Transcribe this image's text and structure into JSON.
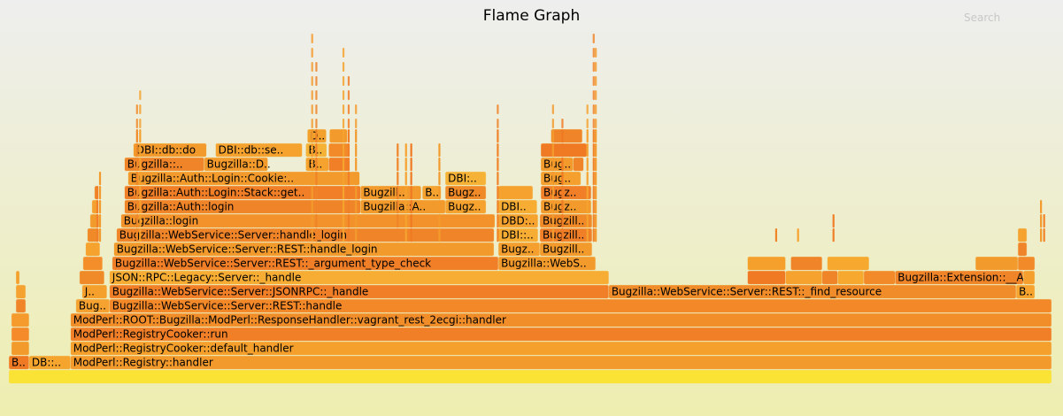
{
  "title": "Flame Graph",
  "search_label": "Search",
  "colors": {
    "background_top": "#eeeeee",
    "background_bottom": "#eeeeb0"
  },
  "chart_data": {
    "type": "flame",
    "title": "Flame Graph",
    "note": "x and w are fractions of total samples; depth 0 is the root frame",
    "frames": [
      {
        "d": 0,
        "x": 0.0,
        "w": 1.0,
        "label": "",
        "c": "#fae334"
      },
      {
        "d": 1,
        "x": 0.0,
        "w": 0.0194,
        "label": "B..",
        "c": "#f07a24"
      },
      {
        "d": 1,
        "x": 0.0194,
        "w": 0.0398,
        "label": "DB::..",
        "c": "#f5a52e"
      },
      {
        "d": 1,
        "x": 0.0592,
        "w": 0.9408,
        "label": "ModPerl::Registry::handler",
        "c": "#f39a2c"
      },
      {
        "d": 2,
        "x": 0.0025,
        "w": 0.0169,
        "label": "",
        "c": "#f29a2b"
      },
      {
        "d": 2,
        "x": 0.0592,
        "w": 0.9408,
        "label": "ModPerl::RegistryCooker::default_handler",
        "c": "#f5a02c"
      },
      {
        "d": 3,
        "x": 0.0025,
        "w": 0.0169,
        "label": "",
        "c": "#f48a2a"
      },
      {
        "d": 3,
        "x": 0.0592,
        "w": 0.9408,
        "label": "ModPerl::RegistryCooker::run",
        "c": "#f07f28"
      },
      {
        "d": 4,
        "x": 0.0025,
        "w": 0.0169,
        "label": "",
        "c": "#f59a2c"
      },
      {
        "d": 4,
        "x": 0.0592,
        "w": 0.9408,
        "label": "ModPerl::ROOT::Bugzilla::ModPerl::ResponseHandler::vagrant_rest_2ecgi::handler",
        "c": "#f28e2a"
      },
      {
        "d": 5,
        "x": 0.0068,
        "w": 0.0093,
        "label": "",
        "c": "#f08428"
      },
      {
        "d": 5,
        "x": 0.0644,
        "w": 0.0322,
        "label": "Bug..",
        "c": "#f6a230"
      },
      {
        "d": 5,
        "x": 0.0966,
        "w": 0.9034,
        "label": "Bugzilla::WebService::Server::REST::handle",
        "c": "#f38829"
      },
      {
        "d": 6,
        "x": 0.0068,
        "w": 0.0093,
        "label": "",
        "c": "#f5a230"
      },
      {
        "d": 6,
        "x": 0.0703,
        "w": 0.0237,
        "label": "J..",
        "c": "#f5a02c"
      },
      {
        "d": 6,
        "x": 0.0966,
        "w": 0.4788,
        "label": "Bugzilla::WebService::Server::JSONRPC::_handle",
        "c": "#f07f28"
      },
      {
        "d": 6,
        "x": 0.5754,
        "w": 0.3907,
        "label": "Bugzilla::WebService::Server::REST::_find_resource",
        "c": "#f08c29"
      },
      {
        "d": 6,
        "x": 0.9661,
        "w": 0.0178,
        "label": "B..",
        "c": "#f6a32f"
      },
      {
        "d": 7,
        "x": 0.0068,
        "w": 0.0034,
        "label": "",
        "c": "#f3a02d"
      },
      {
        "d": 7,
        "x": 0.0678,
        "w": 0.0237,
        "label": "",
        "c": "#f08a28"
      },
      {
        "d": 7,
        "x": 0.0966,
        "w": 0.4788,
        "label": "JSON::RPC::Legacy::Server::_handle",
        "c": "#f7ac33"
      },
      {
        "d": 7,
        "x": 0.7085,
        "w": 0.0364,
        "label": "",
        "c": "#f07a24"
      },
      {
        "d": 7,
        "x": 0.745,
        "w": 0.035,
        "label": "",
        "c": "#f5a22f"
      },
      {
        "d": 7,
        "x": 0.78,
        "w": 0.015,
        "label": "",
        "c": "#f08428"
      },
      {
        "d": 7,
        "x": 0.795,
        "w": 0.025,
        "label": "",
        "c": "#f6a82f"
      },
      {
        "d": 7,
        "x": 0.82,
        "w": 0.03,
        "label": "",
        "c": "#f28a2a"
      },
      {
        "d": 7,
        "x": 0.85,
        "w": 0.1229,
        "label": "Bugzilla::Extension::__A..",
        "c": "#f08428"
      },
      {
        "d": 7,
        "x": 0.9729,
        "w": 0.011,
        "label": "",
        "c": "#f5a02e"
      },
      {
        "d": 8,
        "x": 0.0712,
        "w": 0.0186,
        "label": "",
        "c": "#f48e2b"
      },
      {
        "d": 8,
        "x": 0.0992,
        "w": 0.3703,
        "label": "Bugzilla::WebService::Server::REST::_argument_type_check",
        "c": "#f07f28"
      },
      {
        "d": 8,
        "x": 0.4695,
        "w": 0.0932,
        "label": "Bugzilla::WebS..",
        "c": "#f39a2d"
      },
      {
        "d": 8,
        "x": 0.7085,
        "w": 0.0364,
        "label": "",
        "c": "#f5a02c"
      },
      {
        "d": 8,
        "x": 0.75,
        "w": 0.03,
        "label": "",
        "c": "#f08428"
      },
      {
        "d": 8,
        "x": 0.785,
        "w": 0.04,
        "label": "",
        "c": "#f6a82f"
      },
      {
        "d": 8,
        "x": 0.9271,
        "w": 0.0407,
        "label": "",
        "c": "#f39a2d"
      },
      {
        "d": 8,
        "x": 0.9678,
        "w": 0.0161,
        "label": "",
        "c": "#f28a2a"
      },
      {
        "d": 9,
        "x": 0.0737,
        "w": 0.0136,
        "label": "",
        "c": "#f5a22f"
      },
      {
        "d": 9,
        "x": 0.1008,
        "w": 0.3644,
        "label": "Bugzilla::WebService::Server::REST::handle_login",
        "c": "#f39a2c"
      },
      {
        "d": 9,
        "x": 0.4695,
        "w": 0.0398,
        "label": "Bugz..",
        "c": "#f5a02e"
      },
      {
        "d": 9,
        "x": 0.5093,
        "w": 0.05,
        "label": "Bugzill..",
        "c": "#f39a2d"
      },
      {
        "d": 9,
        "x": 0.9678,
        "w": 0.0085,
        "label": "",
        "c": "#f08428"
      },
      {
        "d": 10,
        "x": 0.0754,
        "w": 0.011,
        "label": "",
        "c": "#f08a28"
      },
      {
        "d": 10,
        "x": 0.1034,
        "w": 0.3619,
        "label": "Bugzilla::WebService::Server::handle_login",
        "c": "#f08428"
      },
      {
        "d": 10,
        "x": 0.4695,
        "w": 0.038,
        "label": "DBI::..",
        "c": "#f7ac33"
      },
      {
        "d": 10,
        "x": 0.5093,
        "w": 0.05,
        "label": "Bugzill..",
        "c": "#f07f28"
      },
      {
        "d": 10,
        "x": 0.9678,
        "w": 0.0085,
        "label": "",
        "c": "#f5a22f"
      },
      {
        "d": 11,
        "x": 0.078,
        "w": 0.0085,
        "label": "",
        "c": "#f39a2c"
      },
      {
        "d": 11,
        "x": 0.1076,
        "w": 0.3585,
        "label": "Bugzilla::login",
        "c": "#f3922b"
      },
      {
        "d": 11,
        "x": 0.4695,
        "w": 0.038,
        "label": "DBD:..",
        "c": "#f5a22f"
      },
      {
        "d": 11,
        "x": 0.5093,
        "w": 0.05,
        "label": "Bugzill..",
        "c": "#f08a28"
      },
      {
        "d": 12,
        "x": 0.0797,
        "w": 0.0059,
        "label": "",
        "c": "#f5a02e"
      },
      {
        "d": 12,
        "x": 0.111,
        "w": 0.2263,
        "label": "Bugzilla::Auth::login",
        "c": "#f08428"
      },
      {
        "d": 12,
        "x": 0.3373,
        "w": 0.0814,
        "label": "Bugzilla::A..",
        "c": "#f39a2c"
      },
      {
        "d": 12,
        "x": 0.4186,
        "w": 0.039,
        "label": "Bugz..",
        "c": "#f5a22f"
      },
      {
        "d": 12,
        "x": 0.4695,
        "w": 0.037,
        "label": "DBI..",
        "c": "#f7ac33"
      },
      {
        "d": 12,
        "x": 0.5102,
        "w": 0.0483,
        "label": "Bugz..",
        "c": "#f39a2c"
      },
      {
        "d": 13,
        "x": 0.0822,
        "w": 0.0034,
        "label": "",
        "c": "#f08428"
      },
      {
        "d": 13,
        "x": 0.111,
        "w": 0.2263,
        "label": "Bugzilla::Auth::Login::Stack::get..",
        "c": "#f07f28"
      },
      {
        "d": 13,
        "x": 0.3373,
        "w": 0.058,
        "label": "Bugzill..",
        "c": "#f39a2c"
      },
      {
        "d": 13,
        "x": 0.3966,
        "w": 0.0178,
        "label": "B..",
        "c": "#f5a22f"
      },
      {
        "d": 13,
        "x": 0.4186,
        "w": 0.039,
        "label": "Bugz..",
        "c": "#f08a28"
      },
      {
        "d": 13,
        "x": 0.4695,
        "w": 0.033,
        "label": "",
        "c": "#f5a22f"
      },
      {
        "d": 13,
        "x": 0.5102,
        "w": 0.0483,
        "label": "Bugz..",
        "c": "#f07f28"
      },
      {
        "d": 14,
        "x": 0.1144,
        "w": 0.222,
        "label": "Bugzilla::Auth::Login::Cookie:..",
        "c": "#f39a2c"
      },
      {
        "d": 14,
        "x": 0.4186,
        "w": 0.039,
        "label": "DBI:..",
        "c": "#f6b236"
      },
      {
        "d": 14,
        "x": 0.5102,
        "w": 0.0383,
        "label": "Bug..",
        "c": "#f5a02e"
      },
      {
        "d": 15,
        "x": 0.111,
        "w": 0.0763,
        "label": "Bugzilla::..",
        "c": "#f08428"
      },
      {
        "d": 15,
        "x": 0.1873,
        "w": 0.061,
        "label": "Bugzilla::D..",
        "c": "#f39a2c"
      },
      {
        "d": 15,
        "x": 0.2848,
        "w": 0.022,
        "label": "B..",
        "c": "#f5a22f"
      },
      {
        "d": 15,
        "x": 0.3068,
        "w": 0.0195,
        "label": "",
        "c": "#f07f28"
      },
      {
        "d": 15,
        "x": 0.5102,
        "w": 0.031,
        "label": "Bug..",
        "c": "#f39a2c"
      },
      {
        "d": 15,
        "x": 0.5412,
        "w": 0.01,
        "label": "",
        "c": "#f08428"
      },
      {
        "d": 16,
        "x": 0.1195,
        "w": 0.07,
        "label": "DBI::db::do",
        "c": "#f39a2c"
      },
      {
        "d": 16,
        "x": 0.1983,
        "w": 0.083,
        "label": "DBI::db::se..",
        "c": "#f5a22f"
      },
      {
        "d": 16,
        "x": 0.2848,
        "w": 0.02,
        "label": "B..",
        "c": "#f6b236"
      },
      {
        "d": 16,
        "x": 0.3068,
        "w": 0.0195,
        "label": "",
        "c": "#f28a2a"
      },
      {
        "d": 16,
        "x": 0.5102,
        "w": 0.044,
        "label": "",
        "c": "#f07a24"
      },
      {
        "d": 17,
        "x": 0.2864,
        "w": 0.018,
        "label": "D..",
        "c": "#f3a02d"
      },
      {
        "d": 17,
        "x": 0.3076,
        "w": 0.017,
        "label": "",
        "c": "#f39a2c"
      },
      {
        "d": 17,
        "x": 0.52,
        "w": 0.03,
        "label": "",
        "c": "#f08428"
      }
    ]
  }
}
